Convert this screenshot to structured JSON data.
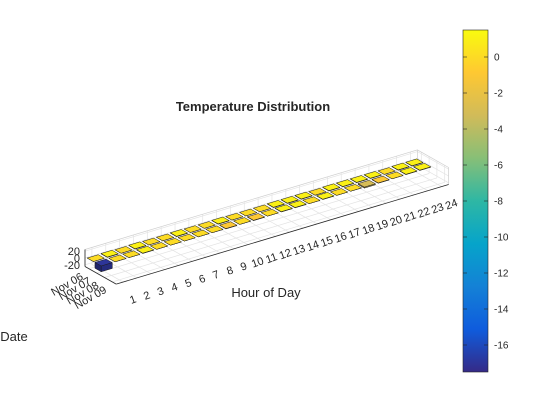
{
  "chart_data": {
    "type": "bar3",
    "title": "Temperature Distribution",
    "xlabel": "Hour of Day",
    "ylabel": "Date",
    "zlabel": "",
    "x_categories": [
      "1",
      "2",
      "3",
      "4",
      "5",
      "6",
      "7",
      "8",
      "9",
      "10",
      "11",
      "12",
      "13",
      "14",
      "15",
      "16",
      "17",
      "18",
      "19",
      "20",
      "21",
      "22",
      "23",
      "24"
    ],
    "y_categories": [
      "Nov 06",
      "Nov 07",
      "Nov 08",
      "Nov 09"
    ],
    "z_ticks": [
      -20,
      0,
      20
    ],
    "zlim": [
      -25,
      25
    ],
    "grid": true,
    "colormap": "parula",
    "clim": [
      -17.5,
      1.5
    ],
    "colorbar_ticks": [
      0,
      -2,
      -4,
      -6,
      -8,
      -10,
      -12,
      -14,
      -16
    ],
    "series": [
      {
        "name": "Nov 06",
        "values": [
          0,
          1,
          0,
          1,
          0,
          0,
          1,
          0,
          0,
          1,
          0,
          0,
          0,
          1,
          1,
          1,
          0,
          1,
          1,
          1,
          1,
          0,
          1,
          1
        ]
      },
      {
        "name": "Nov 07",
        "values": [
          -17,
          0,
          0,
          1,
          0,
          0,
          0,
          0,
          0,
          -1,
          0,
          -1,
          0,
          1,
          1,
          0,
          1,
          0,
          0,
          -3,
          -1,
          0,
          1,
          1
        ]
      }
    ]
  }
}
